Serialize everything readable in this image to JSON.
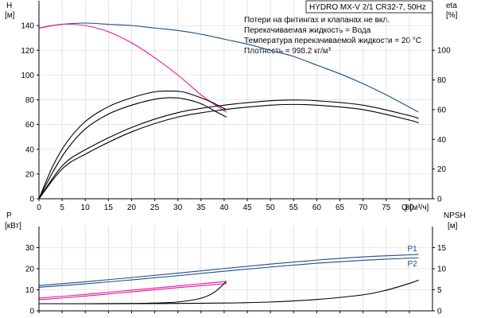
{
  "title": "HYDRO MX-V 2/1 CR32-7, 50Hz",
  "notes": [
    "Потери на фитингах и клапанах не вкл.",
    "Перекачиваемая жидкость = Вода",
    "Температура перекачиваемой жидкости = 20 °C",
    "Плотность = 998.2 кг/м³"
  ],
  "colors": {
    "blue": "#1a4f8a",
    "magenta": "#e8169c",
    "black": "#000000",
    "grid": "#d4d4d4"
  },
  "chart_data": [
    {
      "type": "line",
      "panel": "top",
      "grid": true,
      "xlabel": "Q [м³/ч]",
      "ylabel_left_name": "H",
      "ylabel_left_unit": "[м]",
      "ylabel_right_name": "eta",
      "ylabel_right_unit": "[%]",
      "xlim": [
        0,
        85
      ],
      "ylim_left": [
        0,
        160
      ],
      "ylim_right": [
        0,
        133.3
      ],
      "x_ticks": [
        0,
        5,
        10,
        15,
        20,
        25,
        30,
        35,
        40,
        45,
        50,
        55,
        60,
        65,
        70,
        75,
        80
      ],
      "y_left_ticks": [
        0,
        20,
        40,
        60,
        80,
        100,
        120,
        140
      ],
      "y_right_ticks": [
        0,
        20,
        40,
        60,
        80,
        100
      ],
      "series": [
        {
          "axis": "left",
          "color": "blue",
          "x": [
            0,
            5,
            10,
            15,
            20,
            25,
            30,
            35,
            40,
            45,
            50,
            55,
            60,
            65,
            70,
            75,
            80,
            82
          ],
          "y": [
            138,
            141,
            142,
            141,
            140,
            138,
            136,
            133,
            129,
            125,
            120,
            115,
            108,
            101,
            93,
            84,
            74,
            70
          ]
        },
        {
          "axis": "left",
          "color": "magenta",
          "x": [
            0,
            5,
            10,
            15,
            20,
            25,
            30,
            35,
            38,
            40.5
          ],
          "y": [
            138,
            141,
            140,
            135,
            126,
            114,
            100,
            84,
            76,
            70
          ]
        },
        {
          "axis": "right",
          "color": "black",
          "x": [
            0,
            3,
            6,
            10,
            15,
            20,
            25,
            28,
            31,
            35,
            38,
            40.5
          ],
          "y": [
            0,
            22,
            38,
            52,
            62,
            68,
            72,
            72.5,
            72,
            68,
            64,
            60
          ]
        },
        {
          "axis": "right",
          "color": "black",
          "x": [
            0,
            3,
            6,
            10,
            15,
            20,
            25,
            28,
            31,
            35,
            38,
            40.5
          ],
          "y": [
            0,
            18,
            33,
            47,
            57,
            63,
            67,
            68,
            67.5,
            64,
            59,
            55
          ]
        },
        {
          "axis": "right",
          "color": "black",
          "x": [
            0,
            5,
            10,
            20,
            30,
            40,
            50,
            55,
            60,
            70,
            80,
            82
          ],
          "y": [
            0,
            22,
            33,
            48,
            58,
            63,
            66,
            66.5,
            66,
            63,
            56,
            54
          ]
        },
        {
          "axis": "right",
          "color": "black",
          "x": [
            0,
            5,
            10,
            20,
            30,
            40,
            50,
            55,
            60,
            70,
            80,
            82
          ],
          "y": [
            0,
            20,
            30,
            45,
            55,
            60,
            63,
            63.5,
            63,
            60,
            53,
            51
          ]
        }
      ]
    },
    {
      "type": "line",
      "panel": "bottom",
      "grid": true,
      "ylabel_left_name": "P",
      "ylabel_left_unit": "[кВт]",
      "ylabel_right_name": "NPSH",
      "ylabel_right_unit": "[м]",
      "xlim": [
        0,
        85
      ],
      "ylim_left": [
        0,
        40
      ],
      "ylim_right": [
        0,
        20
      ],
      "x_ticks": [
        0,
        5,
        10,
        15,
        20,
        25,
        30,
        35,
        40,
        45,
        50,
        55,
        60,
        65,
        70,
        75,
        80
      ],
      "y_left_ticks": [
        0,
        10,
        20,
        30
      ],
      "y_right_ticks": [
        0,
        5,
        10,
        15
      ],
      "series": [
        {
          "name": "P1",
          "axis": "left",
          "color": "blue",
          "x": [
            0,
            10,
            20,
            30,
            40,
            50,
            60,
            70,
            80,
            82
          ],
          "y": [
            12,
            13.8,
            15.8,
            17.9,
            20.1,
            22.2,
            24.1,
            25.6,
            26.6,
            26.8
          ]
        },
        {
          "name": "P2",
          "axis": "left",
          "color": "blue",
          "x": [
            0,
            10,
            20,
            30,
            40,
            50,
            60,
            70,
            80,
            82
          ],
          "y": [
            11.2,
            12.8,
            14.7,
            16.7,
            18.8,
            20.8,
            22.6,
            24,
            25,
            25.2
          ]
        },
        {
          "axis": "left",
          "color": "magenta",
          "x": [
            0,
            10,
            20,
            30,
            40.5
          ],
          "y": [
            6,
            7.8,
            9.8,
            11.8,
            14
          ]
        },
        {
          "axis": "left",
          "color": "magenta",
          "x": [
            0,
            10,
            20,
            30,
            40.5
          ],
          "y": [
            5.2,
            7,
            9,
            11,
            13
          ]
        },
        {
          "axis": "right",
          "color": "black",
          "x": [
            0,
            10,
            20,
            25,
            30,
            35,
            38,
            40.5
          ],
          "y": [
            1.7,
            1.7,
            1.75,
            1.85,
            2.1,
            3,
            4.5,
            7
          ]
        },
        {
          "axis": "right",
          "color": "black",
          "x": [
            0,
            20,
            40,
            50,
            60,
            70,
            75,
            80,
            82
          ],
          "y": [
            1.7,
            1.7,
            1.85,
            2.1,
            2.7,
            3.8,
            4.9,
            6.5,
            7.3
          ]
        }
      ]
    }
  ]
}
